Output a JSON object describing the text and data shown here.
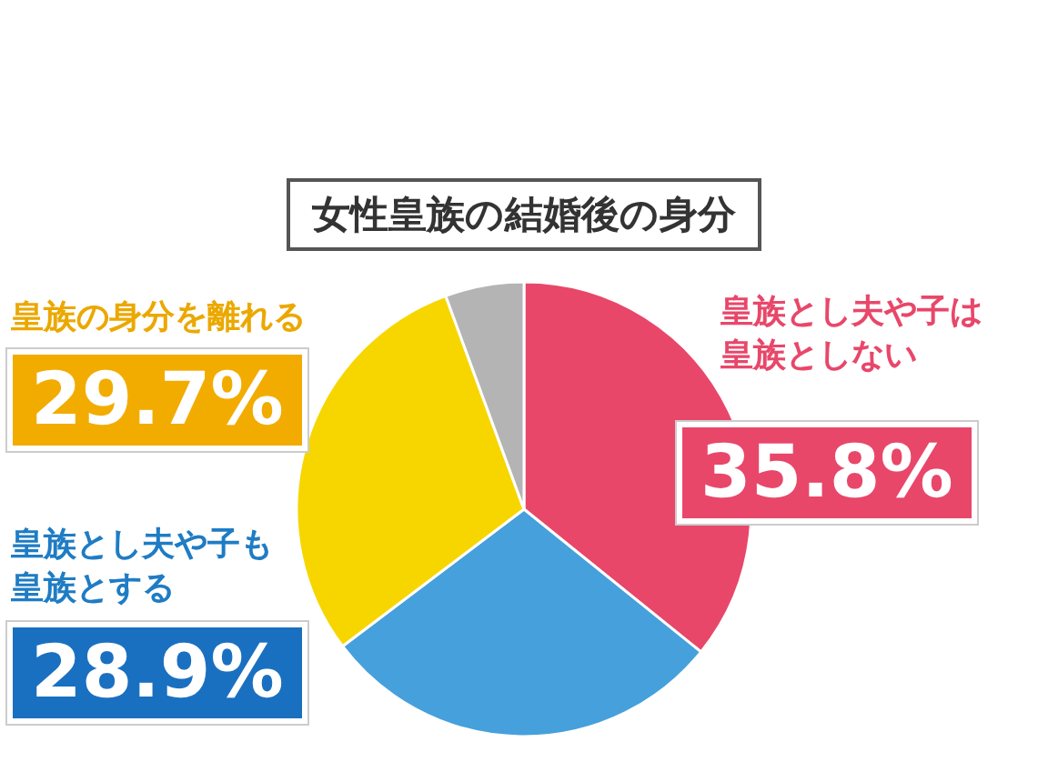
{
  "chart_data": {
    "type": "pie",
    "title": "女性皇族の結婚後の身分",
    "categories": [
      "皇族とし夫や子は皇族としない",
      "皇族とし夫や子も皇族とする",
      "皇族の身分を離れる",
      null
    ],
    "values": [
      35.8,
      28.9,
      29.7,
      5.6
    ],
    "colors": [
      "#e8476a",
      "#46a0dc",
      "#f7d600",
      "#b4b4b4"
    ],
    "value_labels": [
      "35.8%",
      "28.9%",
      "29.7%",
      null
    ],
    "legend": false
  }
}
